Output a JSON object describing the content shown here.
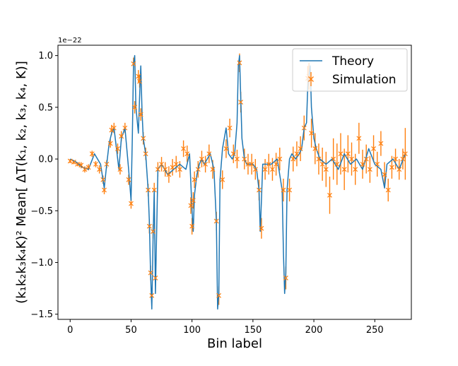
{
  "chart_data": {
    "type": "line",
    "xlabel": "Bin label",
    "ylabel": "(k₁k₂k₃k₄K)² Mean[ ΔT(k₁, k₂, k₃, k₄, K)]",
    "y_offset_label": "1e−22",
    "xlim": [
      -10,
      280
    ],
    "ylim": [
      -1.55,
      1.1
    ],
    "x_ticks": [
      0,
      50,
      100,
      150,
      200,
      250
    ],
    "x_tick_labels": [
      "0",
      "50",
      "100",
      "150",
      "200",
      "250"
    ],
    "y_ticks": [
      -1.5,
      -1.0,
      -0.5,
      0.0,
      0.5,
      1.0
    ],
    "y_tick_labels": [
      "−1.5",
      "−1.0",
      "−0.5",
      "0.0",
      "0.5",
      "1.0"
    ],
    "legend": {
      "position": "top-right",
      "entries": [
        "Theory",
        "Simulation"
      ]
    },
    "grid": false,
    "colors": {
      "theory": "#1f77b4",
      "simulation": "#ff7f0e"
    },
    "series": [
      {
        "name": "Theory",
        "style": "line",
        "x": [
          0,
          5,
          10,
          15,
          20,
          25,
          28,
          30,
          32,
          34,
          36,
          38,
          40,
          42,
          45,
          48,
          50,
          51,
          52,
          53,
          54,
          56,
          57,
          58,
          59,
          60,
          62,
          64,
          65,
          66,
          67,
          68,
          69,
          70,
          72,
          75,
          80,
          85,
          90,
          95,
          98,
          100,
          101,
          102,
          104,
          106,
          108,
          110,
          115,
          118,
          120,
          121,
          122,
          123,
          125,
          128,
          130,
          133,
          135,
          137,
          138,
          139,
          140,
          141,
          143,
          145,
          150,
          153,
          155,
          156,
          157,
          158,
          160,
          165,
          170,
          174,
          175,
          176,
          177,
          178,
          180,
          182,
          185,
          188,
          190,
          192,
          194,
          195,
          196,
          197,
          198,
          200,
          202,
          205,
          210,
          215,
          220,
          225,
          230,
          235,
          240,
          245,
          250,
          255,
          258,
          260,
          265,
          270,
          275
        ],
        "y": [
          0.0,
          -0.03,
          -0.08,
          -0.1,
          0.05,
          -0.05,
          -0.28,
          -0.05,
          0.15,
          0.25,
          0.3,
          0.1,
          -0.1,
          0.2,
          0.3,
          -0.1,
          -0.4,
          0.2,
          0.92,
          1.0,
          0.5,
          0.25,
          0.6,
          0.9,
          0.45,
          0.2,
          0.05,
          -0.3,
          -0.6,
          -1.1,
          -1.45,
          -0.8,
          -0.3,
          -1.3,
          -0.1,
          -0.05,
          -0.15,
          -0.1,
          -0.05,
          -0.1,
          0.05,
          -0.5,
          -0.7,
          -0.35,
          -0.15,
          -0.05,
          0.0,
          -0.05,
          0.05,
          -0.1,
          -0.6,
          -1.45,
          -1.3,
          -0.2,
          0.1,
          0.3,
          0.05,
          0.0,
          0.05,
          0.35,
          0.9,
          1.0,
          0.6,
          0.2,
          0.0,
          -0.05,
          -0.05,
          -0.1,
          -0.3,
          -0.7,
          -0.4,
          -0.05,
          -0.05,
          -0.05,
          0.0,
          -0.3,
          -0.9,
          -1.3,
          -1.1,
          -0.3,
          0.0,
          0.05,
          0.0,
          0.05,
          0.1,
          0.3,
          0.35,
          0.7,
          0.8,
          0.9,
          0.5,
          0.2,
          0.1,
          0.0,
          -0.05,
          0.0,
          -0.1,
          0.05,
          -0.05,
          0.0,
          -0.1,
          0.1,
          -0.05,
          -0.1,
          -0.28,
          -0.05,
          0.0,
          -0.1,
          0.05
        ]
      },
      {
        "name": "Simulation",
        "style": "errorbar",
        "x": [
          0,
          3,
          6,
          9,
          12,
          15,
          18,
          21,
          24,
          27,
          28,
          30,
          33,
          34,
          36,
          39,
          41,
          42,
          45,
          48,
          50,
          52,
          53,
          56,
          57,
          58,
          60,
          62,
          64,
          65,
          66,
          67,
          68,
          69,
          70,
          72,
          75,
          78,
          81,
          84,
          87,
          90,
          93,
          96,
          99,
          100,
          101,
          102,
          105,
          108,
          111,
          114,
          117,
          120,
          122,
          125,
          128,
          131,
          134,
          137,
          139,
          140,
          143,
          146,
          149,
          152,
          155,
          157,
          160,
          163,
          166,
          169,
          172,
          175,
          177,
          180,
          183,
          186,
          189,
          192,
          195,
          196,
          198,
          201,
          204,
          207,
          210,
          213,
          216,
          219,
          222,
          225,
          228,
          231,
          234,
          237,
          240,
          243,
          246,
          249,
          252,
          255,
          258,
          261,
          264,
          267,
          270,
          273,
          275
        ],
        "y": [
          -0.02,
          -0.03,
          -0.05,
          -0.06,
          -0.1,
          -0.08,
          0.05,
          -0.05,
          -0.1,
          -0.2,
          -0.3,
          -0.05,
          0.15,
          0.28,
          0.3,
          0.1,
          -0.1,
          0.22,
          0.3,
          -0.2,
          -0.43,
          0.92,
          0.5,
          0.8,
          0.75,
          0.43,
          0.2,
          0.05,
          -0.3,
          -0.65,
          -1.1,
          -1.32,
          -0.7,
          -0.3,
          -1.15,
          -0.1,
          -0.05,
          -0.1,
          -0.15,
          -0.08,
          -0.05,
          -0.1,
          0.1,
          0.05,
          -0.45,
          -0.65,
          -0.4,
          -0.2,
          -0.1,
          0.0,
          -0.05,
          0.05,
          -0.1,
          -0.6,
          -1.32,
          -0.2,
          0.1,
          0.3,
          0.05,
          0.0,
          0.93,
          0.55,
          0.0,
          -0.05,
          -0.05,
          -0.1,
          -0.3,
          -0.67,
          -0.1,
          -0.05,
          -0.1,
          -0.05,
          0.0,
          -0.3,
          -1.15,
          -0.3,
          0.0,
          0.05,
          0.1,
          0.3,
          0.78,
          0.8,
          0.25,
          0.1,
          0.0,
          -0.05,
          -0.1,
          -0.35,
          0.0,
          -0.05,
          0.05,
          -0.1,
          0.05,
          0.0,
          -0.1,
          0.2,
          -0.05,
          0.0,
          -0.1,
          0.1,
          -0.05,
          0.15,
          -0.15,
          -0.3,
          -0.08,
          0.0,
          -0.1,
          0.0,
          0.05
        ],
        "yerr": [
          0.02,
          0.02,
          0.02,
          0.03,
          0.03,
          0.03,
          0.03,
          0.03,
          0.04,
          0.04,
          0.04,
          0.04,
          0.04,
          0.05,
          0.05,
          0.05,
          0.05,
          0.05,
          0.05,
          0.05,
          0.05,
          0.06,
          0.06,
          0.06,
          0.06,
          0.06,
          0.06,
          0.06,
          0.06,
          0.07,
          0.07,
          0.07,
          0.07,
          0.07,
          0.07,
          0.07,
          0.07,
          0.07,
          0.08,
          0.08,
          0.08,
          0.08,
          0.08,
          0.08,
          0.08,
          0.08,
          0.08,
          0.08,
          0.08,
          0.08,
          0.08,
          0.09,
          0.09,
          0.09,
          0.09,
          0.09,
          0.09,
          0.09,
          0.09,
          0.09,
          0.09,
          0.1,
          0.1,
          0.1,
          0.1,
          0.1,
          0.1,
          0.1,
          0.1,
          0.1,
          0.11,
          0.11,
          0.11,
          0.11,
          0.11,
          0.11,
          0.12,
          0.12,
          0.12,
          0.12,
          0.12,
          0.13,
          0.14,
          0.15,
          0.15,
          0.16,
          0.17,
          0.18,
          0.2,
          0.2,
          0.2,
          0.2,
          0.18,
          0.16,
          0.15,
          0.15,
          0.14,
          0.14,
          0.13,
          0.13,
          0.12,
          0.12,
          0.12,
          0.11,
          0.11,
          0.1,
          0.1,
          0.1,
          0.25
        ]
      }
    ]
  }
}
